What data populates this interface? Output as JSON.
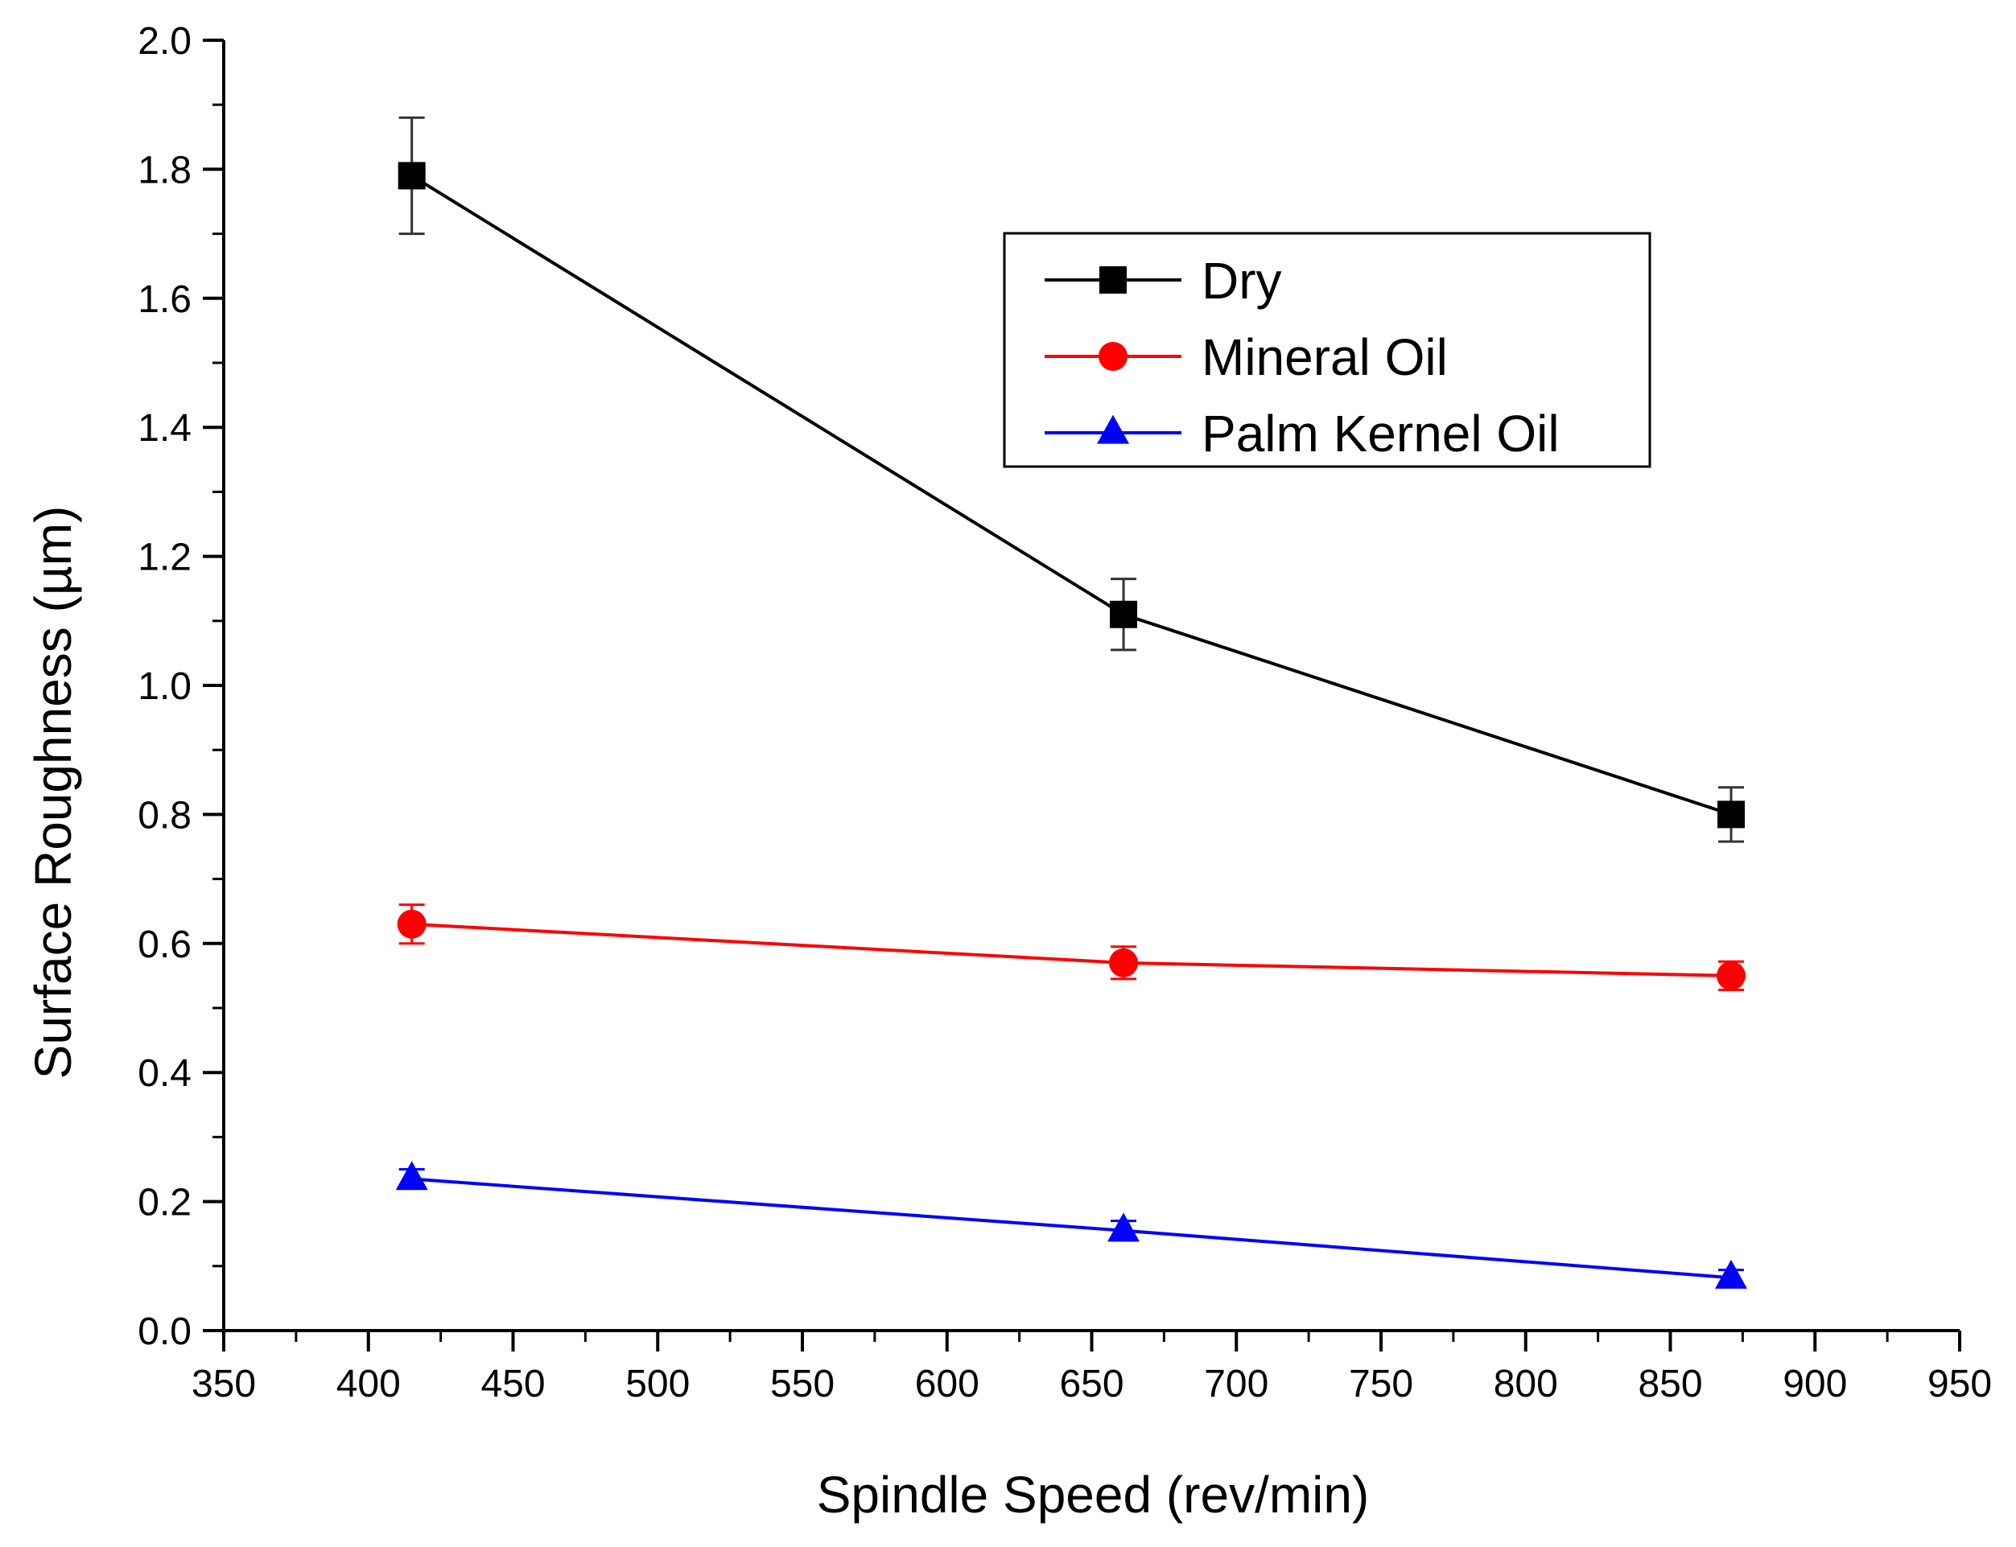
{
  "chart_data": {
    "type": "line",
    "title": "",
    "xlabel": "Spindle Speed (rev/min)",
    "ylabel": "Surface Roughness (µm)",
    "xlim": [
      350,
      950
    ],
    "ylim": [
      0.0,
      2.0
    ],
    "xticks": [
      350,
      400,
      450,
      500,
      550,
      600,
      650,
      700,
      750,
      800,
      850,
      900,
      950
    ],
    "xtick_labels": [
      "350",
      "400",
      "450",
      "500",
      "550",
      "600",
      "650",
      "700",
      "750",
      "800",
      "850",
      "900",
      "950"
    ],
    "yticks": [
      0.0,
      0.2,
      0.4,
      0.6,
      0.8,
      1.0,
      1.2,
      1.4,
      1.6,
      1.8,
      2.0
    ],
    "ytick_labels": [
      "0.0",
      "0.2",
      "0.4",
      "0.6",
      "0.8",
      "1.0",
      "1.2",
      "1.4",
      "1.6",
      "1.8",
      "2.0"
    ],
    "grid": false,
    "legend_position": "top-right",
    "series": [
      {
        "name": "Dry",
        "color": "#000000",
        "marker": "square",
        "x": [
          415,
          661,
          871
        ],
        "y": [
          1.79,
          1.11,
          0.8
        ],
        "error": [
          0.09,
          0.055,
          0.042
        ]
      },
      {
        "name": "Mineral Oil",
        "color": "#ff0000",
        "marker": "circle",
        "x": [
          415,
          661,
          871
        ],
        "y": [
          0.63,
          0.57,
          0.55
        ],
        "error": [
          0.03,
          0.025,
          0.022
        ]
      },
      {
        "name": "Palm Kernel Oil",
        "color": "#0000ff",
        "marker": "triangle",
        "x": [
          415,
          661,
          871
        ],
        "y": [
          0.235,
          0.155,
          0.082
        ],
        "error": [
          0.015,
          0.015,
          0.012
        ]
      }
    ]
  }
}
